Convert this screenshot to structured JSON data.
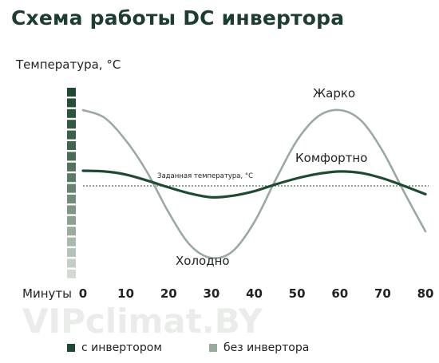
{
  "chart_data": {
    "type": "line",
    "title": "Схема работы DC инвертора",
    "ylabel": "Температура, °C",
    "xlabel": "Минуты",
    "x_ticks": [
      0,
      10,
      20,
      30,
      40,
      50,
      60,
      70,
      80
    ],
    "xlim": [
      0,
      80
    ],
    "ylim": [
      -1.3,
      1.3
    ],
    "setpoint": {
      "label": "Заданная температура, °C",
      "value": 0
    },
    "series": [
      {
        "name": "с инвертором",
        "color": "#1e4a33",
        "x": [
          0,
          5,
          10,
          15,
          20,
          25,
          30,
          35,
          40,
          45,
          50,
          55,
          60,
          65,
          70,
          75,
          80
        ],
        "y": [
          0.2,
          0.19,
          0.15,
          0.07,
          -0.02,
          -0.1,
          -0.15,
          -0.13,
          -0.07,
          0.02,
          0.1,
          0.16,
          0.19,
          0.17,
          0.1,
          0.0,
          -0.11
        ]
      },
      {
        "name": "без инвертора",
        "color": "#9aaa9e",
        "x": [
          0,
          5,
          10,
          15,
          20,
          25,
          30,
          35,
          40,
          45,
          50,
          55,
          60,
          65,
          70,
          75,
          80
        ],
        "y": [
          1.0,
          0.9,
          0.6,
          0.18,
          -0.35,
          -0.78,
          -0.95,
          -0.86,
          -0.48,
          0.08,
          0.6,
          0.92,
          1.0,
          0.86,
          0.46,
          -0.08,
          -0.6
        ]
      }
    ],
    "annotations": [
      "Жарко",
      "Комфортно",
      "Холодно"
    ],
    "scale_colors": [
      "#1e4a33",
      "#244f38",
      "#2b553d",
      "#325a43",
      "#396049",
      "#40664f",
      "#486c55",
      "#51735d",
      "#5b7b65",
      "#66846f",
      "#728d79",
      "#7f9785",
      "#8ca290",
      "#9aad9c",
      "#a8b8aa",
      "#b6c3b8",
      "#c4cec6",
      "#d2dad3"
    ]
  },
  "watermark": "VIPclimat.BY",
  "legend": {
    "inverter": "с инвертором",
    "no_inverter": "без инвертора",
    "inverter_color": "#1e4a33",
    "no_inverter_color": "#9aaa9e"
  }
}
